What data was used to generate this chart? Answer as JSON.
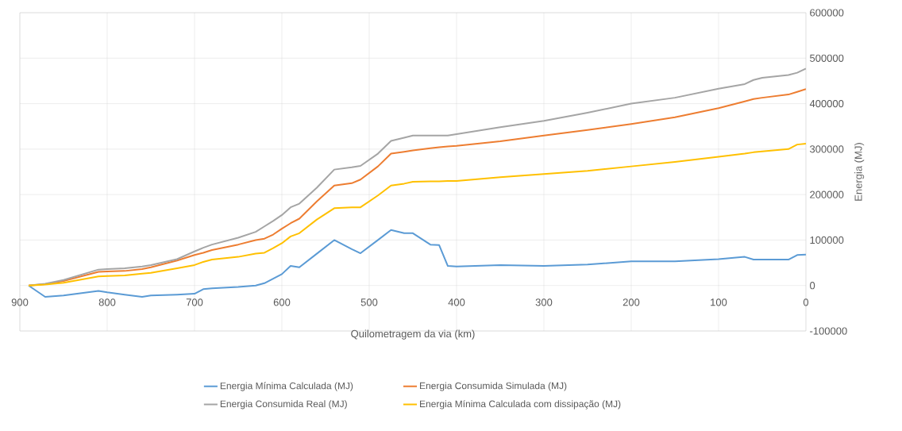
{
  "chart_data": {
    "type": "line",
    "xlabel": "Quilometragem da via (km)",
    "ylabel": "Energia (MJ)",
    "xlim": [
      900,
      0
    ],
    "xticks": [
      900,
      800,
      700,
      600,
      500,
      400,
      300,
      200,
      100,
      0
    ],
    "ylim": [
      -100000,
      600000
    ],
    "yticks": [
      -100000,
      0,
      100000,
      200000,
      300000,
      400000,
      500000,
      600000
    ],
    "grid": true,
    "legend": "bottom",
    "marker": "none",
    "line_style": "solid",
    "x": [
      890,
      871,
      850,
      810,
      800,
      780,
      760,
      750,
      720,
      700,
      690,
      680,
      650,
      630,
      620,
      610,
      600,
      590,
      580,
      560,
      540,
      520,
      510,
      490,
      475,
      460,
      450,
      430,
      420,
      410,
      400,
      350,
      300,
      250,
      200,
      150,
      100,
      70,
      60,
      50,
      20,
      10,
      0
    ],
    "series": [
      {
        "name": "Energia Mínima Calculada (MJ)",
        "color": "#5b9bd5",
        "values": [
          0,
          -25000,
          -22000,
          -12000,
          -15000,
          -20000,
          -25000,
          -22000,
          -20000,
          -18000,
          -8000,
          -6000,
          -3000,
          0,
          5000,
          15000,
          25000,
          43000,
          40000,
          70000,
          100000,
          80000,
          71000,
          100000,
          122000,
          115000,
          115000,
          90000,
          89000,
          43000,
          42000,
          45000,
          43000,
          46000,
          53000,
          53000,
          58000,
          63000,
          57000,
          57000,
          57000,
          67000,
          68000
        ]
      },
      {
        "name": "Energia Consumida Simulada (MJ)",
        "color": "#ed7d31",
        "values": [
          0,
          3000,
          10000,
          30000,
          31000,
          32000,
          36000,
          40000,
          55000,
          67000,
          72000,
          78000,
          90000,
          100000,
          103000,
          112000,
          125000,
          137000,
          147000,
          185000,
          220000,
          225000,
          233000,
          262000,
          290000,
          294000,
          297000,
          302000,
          304000,
          306000,
          307000,
          317000,
          330000,
          342000,
          355000,
          370000,
          390000,
          405000,
          410000,
          413000,
          420000,
          426000,
          432000
        ]
      },
      {
        "name": "Energia Consumida Real (MJ)",
        "color": "#a5a5a5",
        "values": [
          0,
          4000,
          12000,
          35000,
          36000,
          38000,
          42000,
          45000,
          58000,
          75000,
          83000,
          90000,
          105000,
          118000,
          130000,
          142000,
          155000,
          172000,
          180000,
          215000,
          255000,
          260000,
          263000,
          290000,
          318000,
          325000,
          330000,
          330000,
          330000,
          330000,
          333000,
          348000,
          362000,
          380000,
          400000,
          413000,
          433000,
          443000,
          452000,
          457000,
          463000,
          468000,
          477000
        ]
      },
      {
        "name": "Energia Mínima Calculada com dissipação (MJ)",
        "color": "#ffc000",
        "values": [
          0,
          2000,
          6000,
          20000,
          21000,
          22000,
          26000,
          28000,
          38000,
          45000,
          52000,
          57000,
          63000,
          70000,
          72000,
          82000,
          93000,
          108000,
          115000,
          145000,
          170000,
          172000,
          172000,
          198000,
          220000,
          224000,
          228000,
          229000,
          229000,
          230000,
          230000,
          238000,
          245000,
          252000,
          262000,
          272000,
          283000,
          290000,
          293000,
          295000,
          300000,
          310000,
          312000
        ]
      }
    ]
  }
}
